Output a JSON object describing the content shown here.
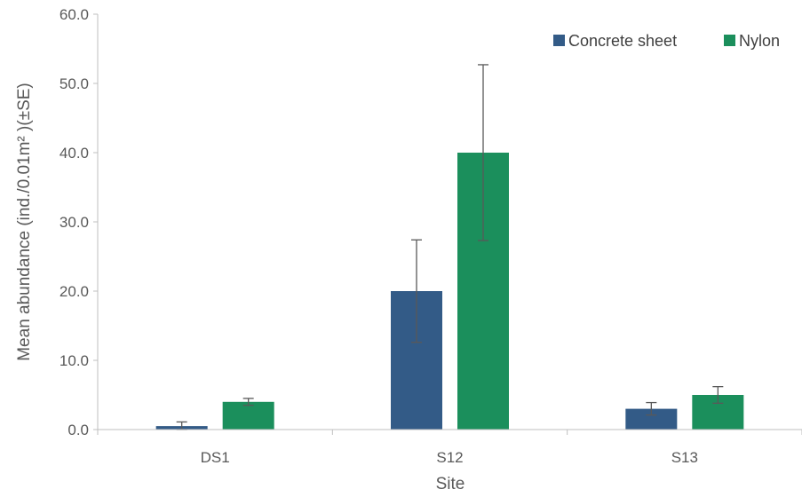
{
  "chart_data": {
    "type": "bar",
    "xlabel": "Site",
    "ylabel": "Mean abundance (ind./0.01m² )(±SE)",
    "ylim": [
      0,
      60
    ],
    "yticks": [
      "0.0",
      "10.0",
      "20.0",
      "30.0",
      "40.0",
      "50.0",
      "60.0"
    ],
    "categories": [
      "DS1",
      "S12",
      "S13"
    ],
    "legend_position": "top-right",
    "grid": false,
    "series": [
      {
        "name": "Concrete sheet",
        "color": "#335b87",
        "values": [
          0.5,
          20.0,
          3.0
        ],
        "errors": [
          0.6,
          7.4,
          0.9
        ]
      },
      {
        "name": "Nylon",
        "color": "#1b8f5c",
        "values": [
          4.0,
          40.0,
          5.0
        ],
        "errors": [
          0.5,
          12.7,
          1.2
        ]
      }
    ]
  }
}
